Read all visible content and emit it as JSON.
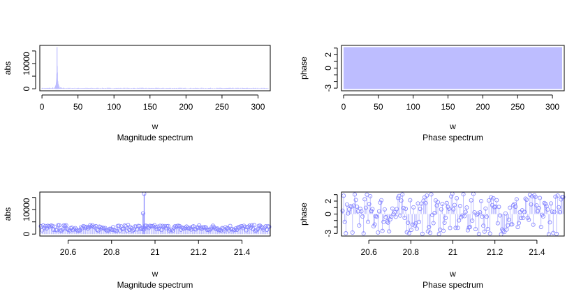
{
  "chart_data": [
    {
      "type": "line",
      "title": "",
      "subtitle": "Magnitude spectrum",
      "xlabel": "w",
      "ylabel": "abs",
      "xlim": [
        -3,
        317
      ],
      "ylim": [
        -800,
        17200
      ],
      "xticks": [
        0,
        50,
        100,
        150,
        200,
        250,
        300
      ],
      "yticks": [
        0,
        10000
      ],
      "yminor": [
        5000,
        15000
      ],
      "series": [
        {
          "style": "histogram-spikes",
          "color": "#bdbdff",
          "x": [
            0,
            10,
            15,
            18,
            19,
            19.5,
            20,
            20.3,
            20.6,
            20.95,
            21.2,
            21.5,
            22,
            22.5,
            23,
            24,
            26,
            30,
            50,
            100,
            150,
            200,
            250,
            300,
            314
          ],
          "y": [
            300,
            400,
            500,
            700,
            1000,
            1500,
            2500,
            3500,
            6000,
            16500,
            9000,
            6500,
            3000,
            2000,
            1500,
            900,
            600,
            400,
            300,
            200,
            200,
            200,
            200,
            200,
            200
          ]
        }
      ]
    },
    {
      "type": "area",
      "title": "",
      "subtitle": "Phase spectrum",
      "xlabel": "w",
      "ylabel": "phase",
      "xlim": [
        -3,
        317
      ],
      "ylim": [
        -3.4,
        3.4
      ],
      "xticks": [
        0,
        50,
        100,
        150,
        200,
        250,
        300
      ],
      "yticks": [
        -3,
        0,
        2
      ],
      "yminor": [
        -2,
        -1,
        1,
        3
      ],
      "series": [
        {
          "style": "filled-band",
          "color": "#bdbdff",
          "x": [
            0,
            314
          ],
          "ymin": -3.14,
          "ymax": 3.14
        }
      ]
    },
    {
      "type": "scatter",
      "title": "",
      "subtitle": "Magnitude spectrum",
      "xlabel": "w",
      "ylabel": "abs",
      "xlim": [
        20.47,
        21.53
      ],
      "ylim": [
        -800,
        17200
      ],
      "xticks": [
        20.6,
        20.8,
        21.0,
        21.2,
        21.4
      ],
      "yticks": [
        0,
        10000
      ],
      "yminor": [
        5000,
        15000
      ],
      "series": [
        {
          "style": "points-with-spikes",
          "color": "#8080ff",
          "n": 200,
          "baseline": 2500,
          "noise": 1200,
          "peaks": [
            {
              "x": 20.95,
              "y": 16500
            },
            {
              "x": 20.945,
              "y": 8500
            }
          ]
        }
      ]
    },
    {
      "type": "scatter",
      "title": "",
      "subtitle": "Phase spectrum",
      "xlabel": "w",
      "ylabel": "phase",
      "xlim": [
        20.47,
        21.53
      ],
      "ylim": [
        -3.4,
        3.4
      ],
      "xticks": [
        20.6,
        20.8,
        21.0,
        21.2,
        21.4
      ],
      "yticks": [
        -3,
        0,
        2
      ],
      "yminor": [
        -2,
        -1,
        1,
        3
      ],
      "series": [
        {
          "style": "points-with-spikes",
          "color": "#8080ff",
          "n": 200,
          "range": [
            -3.14,
            3.14
          ]
        }
      ]
    }
  ]
}
